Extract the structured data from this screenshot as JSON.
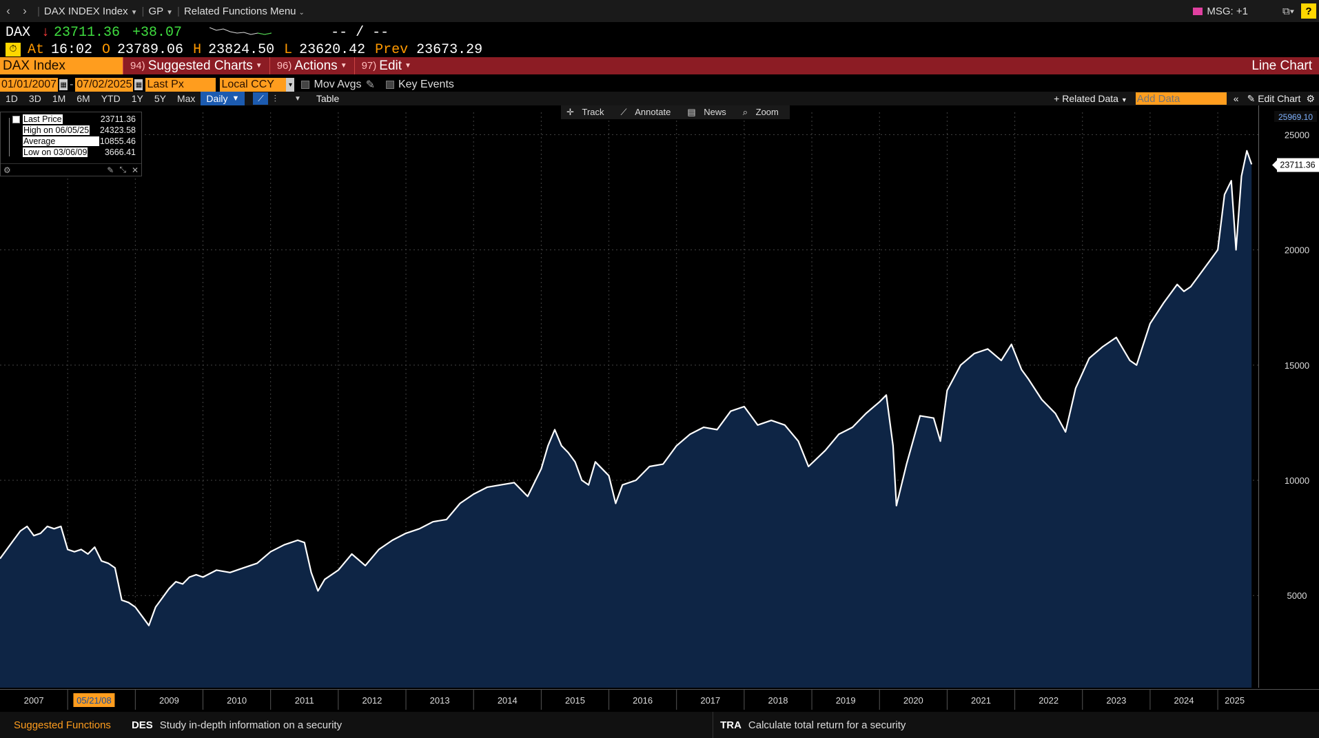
{
  "topnav": {
    "index_menu": "DAX INDEX Index",
    "gp_menu": "GP",
    "related_menu": "Related Functions Menu",
    "msg": "MSG: +1",
    "help": "?"
  },
  "quote": {
    "ticker": "DAX",
    "last": "23711.36",
    "change": "+38.07",
    "bid_ask": "-- / --",
    "at_label": "At",
    "time": "16:02",
    "open_label": "O",
    "open": "23789.06",
    "high_label": "H",
    "high": "23824.50",
    "low_label": "L",
    "low": "23620.42",
    "prev_label": "Prev",
    "prev": "23673.29"
  },
  "menubar": {
    "security": "DAX Index",
    "items": [
      {
        "num": "94)",
        "label": "Suggested Charts"
      },
      {
        "num": "96)",
        "label": "Actions"
      },
      {
        "num": "97)",
        "label": "Edit"
      }
    ],
    "chart_type": "Line Chart"
  },
  "controls": {
    "start_date": "01/01/2007",
    "end_date": "07/02/2025",
    "field": "Last Px",
    "currency": "Local CCY",
    "mov_avgs": "Mov Avgs",
    "key_events": "Key Events",
    "ranges": [
      "1D",
      "3D",
      "1M",
      "6M",
      "YTD",
      "1Y",
      "5Y",
      "Max"
    ],
    "frequency": "Daily",
    "table": "Table",
    "related_data": "Related Data",
    "add_data_placeholder": "Add Data",
    "edit_chart": "Edit Chart"
  },
  "overlay_tools": [
    "Track",
    "Annotate",
    "News",
    "Zoom"
  ],
  "legend": {
    "rows": [
      {
        "label": "Last Price",
        "value": "23711.36"
      },
      {
        "label": "High on 06/05/25",
        "value": "24323.58"
      },
      {
        "label": "Average",
        "value": "10855.46"
      },
      {
        "label": "Low on 03/06/09",
        "value": "3666.41"
      }
    ]
  },
  "footer": {
    "suggested": "Suggested Functions",
    "items": [
      {
        "code": "DES",
        "desc": "Study in-depth information on a security"
      },
      {
        "code": "TRA",
        "desc": "Calculate total return for a security"
      }
    ]
  },
  "colors": {
    "accent": "#ff9d1e",
    "bar": "#8c1c24",
    "area": "#0e2545",
    "line": "#ffffff"
  },
  "chart_data": {
    "type": "area",
    "title": "",
    "xlabel": "",
    "ylabel": "",
    "ylim": [
      1000,
      25969.1
    ],
    "yticks": [
      5000,
      10000,
      15000,
      20000,
      25000
    ],
    "top_label": "25969.10",
    "last_label": "23711.36",
    "x_ticks": [
      "2007",
      "2009",
      "2010",
      "2011",
      "2012",
      "2013",
      "2014",
      "2015",
      "2016",
      "2017",
      "2018",
      "2019",
      "2020",
      "2021",
      "2022",
      "2023",
      "2024",
      "2025"
    ],
    "x_tick_years": [
      2007.5,
      2009.5,
      2010.5,
      2011.5,
      2012.5,
      2013.5,
      2014.5,
      2015.5,
      2016.5,
      2017.5,
      2018.5,
      2019.5,
      2020.5,
      2021.5,
      2022.5,
      2023.5,
      2024.5,
      2025.25
    ],
    "highlight_date": "05/21/08",
    "highlight_year": 2008.39,
    "xlim": [
      2007.0,
      2025.6
    ],
    "grid": true,
    "series": [
      {
        "x": [
          2007.0,
          2007.1,
          2007.2,
          2007.3,
          2007.4,
          2007.5,
          2007.6,
          2007.7,
          2007.8,
          2007.9,
          2008.0,
          2008.1,
          2008.2,
          2008.3,
          2008.4,
          2008.5,
          2008.6,
          2008.7,
          2008.8,
          2008.9,
          2009.0,
          2009.1,
          2009.2,
          2009.3,
          2009.4,
          2009.5,
          2009.6,
          2009.7,
          2009.8,
          2009.9,
          2010.0,
          2010.2,
          2010.4,
          2010.6,
          2010.8,
          2011.0,
          2011.2,
          2011.4,
          2011.5,
          2011.6,
          2011.7,
          2011.8,
          2012.0,
          2012.2,
          2012.4,
          2012.6,
          2012.8,
          2013.0,
          2013.2,
          2013.4,
          2013.6,
          2013.8,
          2014.0,
          2014.2,
          2014.4,
          2014.6,
          2014.8,
          2015.0,
          2015.1,
          2015.2,
          2015.3,
          2015.4,
          2015.5,
          2015.6,
          2015.7,
          2015.8,
          2016.0,
          2016.1,
          2016.2,
          2016.4,
          2016.6,
          2016.8,
          2017.0,
          2017.2,
          2017.4,
          2017.6,
          2017.8,
          2018.0,
          2018.1,
          2018.2,
          2018.4,
          2018.6,
          2018.8,
          2018.95,
          2019.2,
          2019.4,
          2019.6,
          2019.8,
          2020.0,
          2020.1,
          2020.2,
          2020.25,
          2020.4,
          2020.6,
          2020.8,
          2020.9,
          2021.0,
          2021.2,
          2021.4,
          2021.6,
          2021.8,
          2021.95,
          2022.1,
          2022.2,
          2022.4,
          2022.6,
          2022.75,
          2022.9,
          2023.1,
          2023.3,
          2023.5,
          2023.7,
          2023.8,
          2024.0,
          2024.2,
          2024.4,
          2024.5,
          2024.6,
          2024.8,
          2025.0,
          2025.1,
          2025.2,
          2025.27,
          2025.35,
          2025.43,
          2025.5
        ],
        "y": [
          6600,
          7000,
          7400,
          7800,
          8000,
          7600,
          7700,
          8000,
          7900,
          8000,
          7000,
          6900,
          7000,
          6800,
          7100,
          6500,
          6400,
          6200,
          4800,
          4700,
          4500,
          4100,
          3700,
          4500,
          4900,
          5300,
          5600,
          5500,
          5800,
          5900,
          5800,
          6100,
          6000,
          6200,
          6400,
          6900,
          7200,
          7400,
          7300,
          6000,
          5200,
          5700,
          6100,
          6800,
          6300,
          7000,
          7400,
          7700,
          7900,
          8200,
          8300,
          9000,
          9400,
          9700,
          9800,
          9900,
          9300,
          10500,
          11500,
          12200,
          11500,
          11200,
          10800,
          10000,
          9800,
          10800,
          10200,
          9000,
          9800,
          10000,
          10600,
          10700,
          11500,
          12000,
          12300,
          12200,
          13000,
          13200,
          12800,
          12400,
          12600,
          12400,
          11700,
          10600,
          11300,
          12000,
          12300,
          12900,
          13400,
          13700,
          11500,
          8900,
          10700,
          12800,
          12700,
          11700,
          13900,
          15000,
          15500,
          15700,
          15200,
          15900,
          14800,
          14400,
          13500,
          12900,
          12100,
          14000,
          15300,
          15800,
          16200,
          15200,
          15000,
          16800,
          17700,
          18500,
          18200,
          18400,
          19200,
          20000,
          22400,
          23000,
          20000,
          23200,
          24300,
          23711
        ]
      }
    ]
  }
}
